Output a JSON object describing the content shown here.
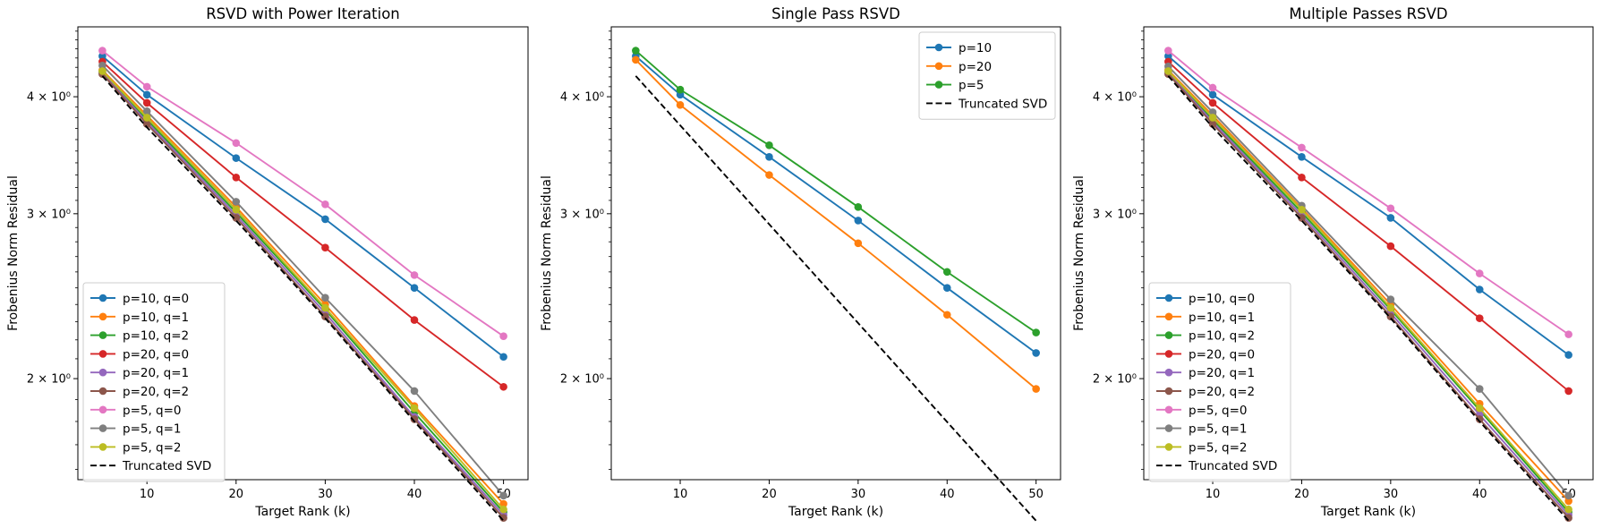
{
  "chart_data": [
    {
      "type": "line",
      "title": "RSVD with Power Iteration",
      "xlabel": "Target Rank (k)",
      "ylabel": "Frobenius Norm Residual",
      "xlim": [
        2.25,
        52.75
      ],
      "ylim": [
        1.56,
        4.75
      ],
      "yscale": "log",
      "xticks": [
        10,
        20,
        30,
        40,
        50
      ],
      "yticks": [
        {
          "value": 2,
          "label": "2 × 10⁰"
        },
        {
          "value": 3,
          "label": "3 × 10⁰"
        },
        {
          "value": 4,
          "label": "4 × 10⁰"
        }
      ],
      "legend_position": "lower-left",
      "series": [
        {
          "name": "p=10, q=0",
          "color": "#1f77b4",
          "marker": "circle",
          "dashed": false,
          "x": [
            5,
            10,
            20,
            30,
            40,
            50
          ],
          "y": [
            4.42,
            4.02,
            3.44,
            2.96,
            2.5,
            2.11
          ]
        },
        {
          "name": "p=10, q=1",
          "color": "#ff7f0e",
          "marker": "circle",
          "dashed": false,
          "x": [
            5,
            10,
            20,
            30,
            40,
            50
          ],
          "y": [
            4.27,
            3.82,
            3.05,
            2.4,
            1.87,
            1.47
          ]
        },
        {
          "name": "p=10, q=2",
          "color": "#2ca02c",
          "marker": "circle",
          "dashed": false,
          "x": [
            5,
            10,
            20,
            30,
            40,
            50
          ],
          "y": [
            4.25,
            3.78,
            3.01,
            2.37,
            1.84,
            1.44
          ]
        },
        {
          "name": "p=20, q=0",
          "color": "#d62728",
          "marker": "circle",
          "dashed": false,
          "x": [
            5,
            10,
            20,
            30,
            40,
            50
          ],
          "y": [
            4.36,
            3.94,
            3.28,
            2.76,
            2.31,
            1.96
          ]
        },
        {
          "name": "p=20, q=1",
          "color": "#9467bd",
          "marker": "circle",
          "dashed": false,
          "x": [
            5,
            10,
            20,
            30,
            40,
            50
          ],
          "y": [
            4.24,
            3.76,
            2.99,
            2.35,
            1.82,
            1.43
          ]
        },
        {
          "name": "p=20, q=2",
          "color": "#8c564b",
          "marker": "circle",
          "dashed": false,
          "x": [
            5,
            10,
            20,
            30,
            40,
            50
          ],
          "y": [
            4.23,
            3.74,
            2.97,
            2.33,
            1.81,
            1.42
          ]
        },
        {
          "name": "p=5, q=0",
          "color": "#e377c2",
          "marker": "circle",
          "dashed": false,
          "x": [
            5,
            10,
            20,
            30,
            40,
            50
          ],
          "y": [
            4.48,
            4.1,
            3.57,
            3.07,
            2.58,
            2.22
          ]
        },
        {
          "name": "p=5, q=1",
          "color": "#7f7f7f",
          "marker": "circle",
          "dashed": false,
          "x": [
            5,
            10,
            20,
            30,
            40,
            50
          ],
          "y": [
            4.32,
            3.86,
            3.09,
            2.44,
            1.94,
            1.5
          ]
        },
        {
          "name": "p=5, q=2",
          "color": "#bcbd22",
          "marker": "circle",
          "dashed": false,
          "x": [
            5,
            10,
            20,
            30,
            40,
            50
          ],
          "y": [
            4.26,
            3.8,
            3.03,
            2.38,
            1.86,
            1.45
          ]
        },
        {
          "name": "Truncated SVD",
          "color": "#000000",
          "marker": "none",
          "dashed": true,
          "x": [
            5,
            10,
            20,
            30,
            40,
            50
          ],
          "y": [
            4.21,
            3.71,
            2.95,
            2.32,
            1.8,
            1.41
          ]
        }
      ]
    },
    {
      "type": "line",
      "title": "Single Pass RSVD",
      "xlabel": "Target Rank (k)",
      "ylabel": "Frobenius Norm Residual",
      "xlim": [
        2.25,
        52.75
      ],
      "ylim": [
        1.56,
        4.75
      ],
      "yscale": "log",
      "xticks": [
        10,
        20,
        30,
        40,
        50
      ],
      "yticks": [
        {
          "value": 2,
          "label": "2 × 10⁰"
        },
        {
          "value": 3,
          "label": "3 × 10⁰"
        },
        {
          "value": 4,
          "label": "4 × 10⁰"
        }
      ],
      "legend_position": "upper-right",
      "series": [
        {
          "name": "p=10",
          "color": "#1f77b4",
          "marker": "circle",
          "dashed": false,
          "x": [
            5,
            10,
            20,
            30,
            40,
            50
          ],
          "y": [
            4.42,
            4.02,
            3.45,
            2.95,
            2.5,
            2.13
          ]
        },
        {
          "name": "p=20",
          "color": "#ff7f0e",
          "marker": "circle",
          "dashed": false,
          "x": [
            5,
            10,
            20,
            30,
            40,
            50
          ],
          "y": [
            4.38,
            3.92,
            3.3,
            2.79,
            2.34,
            1.95
          ]
        },
        {
          "name": "p=5",
          "color": "#2ca02c",
          "marker": "circle",
          "dashed": false,
          "x": [
            5,
            10,
            20,
            30,
            40,
            50
          ],
          "y": [
            4.48,
            4.07,
            3.55,
            3.05,
            2.6,
            2.24
          ]
        },
        {
          "name": "Truncated SVD",
          "color": "#000000",
          "marker": "none",
          "dashed": true,
          "x": [
            5,
            50
          ],
          "y": [
            4.21,
            1.41
          ]
        }
      ]
    },
    {
      "type": "line",
      "title": "Multiple Passes RSVD",
      "xlabel": "Target Rank (k)",
      "ylabel": "Frobenius Norm Residual",
      "xlim": [
        2.25,
        52.75
      ],
      "ylim": [
        1.56,
        4.75
      ],
      "yscale": "log",
      "xticks": [
        10,
        20,
        30,
        40,
        50
      ],
      "yticks": [
        {
          "value": 2,
          "label": "2 × 10⁰"
        },
        {
          "value": 3,
          "label": "3 × 10⁰"
        },
        {
          "value": 4,
          "label": "4 × 10⁰"
        }
      ],
      "legend_position": "lower-left",
      "series": [
        {
          "name": "p=10, q=0",
          "color": "#1f77b4",
          "marker": "circle",
          "dashed": false,
          "x": [
            5,
            10,
            20,
            30,
            40,
            50
          ],
          "y": [
            4.42,
            4.02,
            3.45,
            2.97,
            2.49,
            2.12
          ]
        },
        {
          "name": "p=10, q=1",
          "color": "#ff7f0e",
          "marker": "circle",
          "dashed": false,
          "x": [
            5,
            10,
            20,
            30,
            40,
            50
          ],
          "y": [
            4.27,
            3.82,
            3.04,
            2.4,
            1.88,
            1.48
          ]
        },
        {
          "name": "p=10, q=2",
          "color": "#2ca02c",
          "marker": "circle",
          "dashed": false,
          "x": [
            5,
            10,
            20,
            30,
            40,
            50
          ],
          "y": [
            4.25,
            3.78,
            3.01,
            2.37,
            1.85,
            1.44
          ]
        },
        {
          "name": "p=20, q=0",
          "color": "#d62728",
          "marker": "circle",
          "dashed": false,
          "x": [
            5,
            10,
            20,
            30,
            40,
            50
          ],
          "y": [
            4.36,
            3.94,
            3.28,
            2.77,
            2.32,
            1.94
          ]
        },
        {
          "name": "p=20, q=1",
          "color": "#9467bd",
          "marker": "circle",
          "dashed": false,
          "x": [
            5,
            10,
            20,
            30,
            40,
            50
          ],
          "y": [
            4.24,
            3.76,
            2.99,
            2.35,
            1.83,
            1.43
          ]
        },
        {
          "name": "p=20, q=2",
          "color": "#8c564b",
          "marker": "circle",
          "dashed": false,
          "x": [
            5,
            10,
            20,
            30,
            40,
            50
          ],
          "y": [
            4.23,
            3.74,
            2.97,
            2.33,
            1.81,
            1.42
          ]
        },
        {
          "name": "p=5, q=0",
          "color": "#e377c2",
          "marker": "circle",
          "dashed": false,
          "x": [
            5,
            10,
            20,
            30,
            40,
            50
          ],
          "y": [
            4.48,
            4.09,
            3.53,
            3.04,
            2.59,
            2.23
          ]
        },
        {
          "name": "p=5, q=1",
          "color": "#7f7f7f",
          "marker": "circle",
          "dashed": false,
          "x": [
            5,
            10,
            20,
            30,
            40,
            50
          ],
          "y": [
            4.31,
            3.85,
            3.06,
            2.43,
            1.95,
            1.5
          ]
        },
        {
          "name": "p=5, q=2",
          "color": "#bcbd22",
          "marker": "circle",
          "dashed": false,
          "x": [
            5,
            10,
            20,
            30,
            40,
            50
          ],
          "y": [
            4.26,
            3.8,
            3.03,
            2.38,
            1.86,
            1.45
          ]
        },
        {
          "name": "Truncated SVD",
          "color": "#000000",
          "marker": "none",
          "dashed": true,
          "x": [
            5,
            10,
            20,
            30,
            40,
            50
          ],
          "y": [
            4.21,
            3.71,
            2.95,
            2.32,
            1.8,
            1.41
          ]
        }
      ]
    }
  ]
}
